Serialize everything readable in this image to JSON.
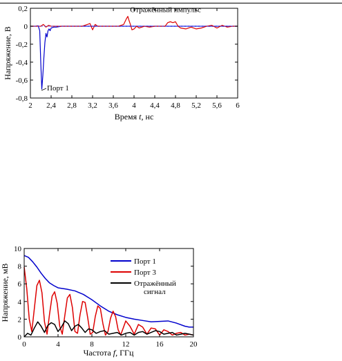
{
  "chart_data": [
    {
      "type": "line",
      "xlabel_parts": [
        "Время ",
        "t",
        ", нс"
      ],
      "ylabel": "Напряжение, В",
      "xlim": [
        2,
        6
      ],
      "ylim": [
        -0.8,
        0.2
      ],
      "xticks": [
        2,
        2.4,
        2.8,
        3.2,
        3.6,
        4,
        4.4,
        4.8,
        5.2,
        5.6,
        6
      ],
      "xtick_labels": [
        "2",
        "2,4",
        "2,8",
        "3,2",
        "3,6",
        "4",
        "4,4",
        "4,8",
        "5,2",
        "5,6",
        "6"
      ],
      "yticks": [
        0.2,
        0,
        -0.2,
        -0.4,
        -0.6,
        -0.8
      ],
      "ytick_labels": [
        "0,2",
        "0",
        "-0,2",
        "-0,4",
        "-0,6",
        "-0,8"
      ],
      "grid": false,
      "annotations": [
        {
          "text": "Отражённый импульс",
          "x": 3.95,
          "y": 0.08
        },
        {
          "text": "Порт 1",
          "x": 2.2,
          "y": -0.7
        }
      ],
      "series": [
        {
          "color": "#0000cc",
          "x": [
            2.0,
            2.1,
            2.15,
            2.18,
            2.2,
            2.22,
            2.24,
            2.26,
            2.28,
            2.3,
            2.32,
            2.34,
            2.36,
            2.38,
            2.4,
            2.45,
            2.5,
            2.6,
            3.0,
            3.5,
            4.0,
            4.5,
            5.0,
            5.5,
            6.0
          ],
          "y": [
            0.0,
            0.0,
            0.005,
            -0.05,
            -0.4,
            -0.7,
            -0.55,
            -0.35,
            -0.18,
            -0.08,
            -0.12,
            -0.05,
            -0.03,
            -0.05,
            -0.02,
            -0.01,
            -0.01,
            0.0,
            0.0,
            0.0,
            0.0,
            0.0,
            0.0,
            0.0,
            0.0
          ]
        },
        {
          "color": "#dd0000",
          "x": [
            2.0,
            2.1,
            2.2,
            2.25,
            2.3,
            2.35,
            2.4,
            2.5,
            2.8,
            3.0,
            3.1,
            3.15,
            3.2,
            3.25,
            3.3,
            3.4,
            3.5,
            3.6,
            3.7,
            3.8,
            3.85,
            3.88,
            3.9,
            3.93,
            3.96,
            4.0,
            4.05,
            4.1,
            4.2,
            4.3,
            4.4,
            4.5,
            4.6,
            4.65,
            4.7,
            4.75,
            4.8,
            4.85,
            4.9,
            5.0,
            5.1,
            5.2,
            5.3,
            5.4,
            5.5,
            5.6,
            5.7,
            5.8,
            5.9,
            6.0
          ],
          "y": [
            0.0,
            0.0,
            0.0,
            0.02,
            -0.01,
            0.01,
            0.0,
            0.0,
            0.0,
            0.0,
            0.02,
            0.03,
            -0.04,
            0.02,
            0.0,
            0.0,
            0.0,
            0.0,
            0.0,
            0.02,
            0.08,
            0.11,
            0.07,
            0.02,
            -0.04,
            -0.03,
            0.0,
            -0.02,
            0.0,
            -0.01,
            0.0,
            0.0,
            0.0,
            0.04,
            0.05,
            0.04,
            0.05,
            0.0,
            -0.02,
            -0.03,
            -0.01,
            -0.03,
            -0.02,
            0.0,
            0.01,
            -0.02,
            0.01,
            -0.01,
            0.0,
            0.0
          ]
        }
      ]
    },
    {
      "type": "line",
      "xlabel_parts": [
        "Частота ",
        "f",
        ", ГГц"
      ],
      "ylabel": "Напряжение, мВ",
      "xlim": [
        0,
        20
      ],
      "ylim": [
        0,
        10
      ],
      "xticks": [
        0,
        4,
        8,
        12,
        16,
        20
      ],
      "xtick_labels": [
        "0",
        "4",
        "8",
        "12",
        "16",
        "20"
      ],
      "yticks": [
        0,
        2,
        4,
        6,
        8,
        10
      ],
      "ytick_labels": [
        "0",
        "2",
        "4",
        "6",
        "8",
        "10"
      ],
      "grid": false,
      "legend_placement": "top-right",
      "legend_label_lines": [
        [
          "Порт 1"
        ],
        [
          "Порт 3"
        ],
        [
          "Отражённый",
          "сигнал"
        ]
      ],
      "series": [
        {
          "name": "Порт 1",
          "color": "#0000cc",
          "x": [
            0,
            0.5,
            1,
            1.5,
            2,
            2.5,
            3,
            3.5,
            4,
            5,
            6,
            7,
            8,
            9,
            10,
            11,
            12,
            13,
            14,
            15,
            16,
            17,
            18,
            19,
            19.5,
            20
          ],
          "y": [
            9.2,
            9.0,
            8.5,
            7.9,
            7.2,
            6.6,
            6.1,
            5.8,
            5.55,
            5.4,
            5.2,
            4.8,
            4.2,
            3.5,
            2.9,
            2.5,
            2.2,
            2.0,
            1.85,
            1.7,
            1.75,
            1.8,
            1.55,
            1.2,
            1.1,
            1.1
          ]
        },
        {
          "name": "Порт 3",
          "color": "#dd0000",
          "x": [
            0,
            0.3,
            0.6,
            0.9,
            1.2,
            1.5,
            1.8,
            2.1,
            2.4,
            2.7,
            3.0,
            3.3,
            3.6,
            3.9,
            4.2,
            4.5,
            4.8,
            5.1,
            5.4,
            5.7,
            6.0,
            6.3,
            6.6,
            6.9,
            7.2,
            7.5,
            7.8,
            8.1,
            8.4,
            8.7,
            9.0,
            9.3,
            9.6,
            9.9,
            10.2,
            10.5,
            10.8,
            11.1,
            11.4,
            11.7,
            12.0,
            12.5,
            13.0,
            13.5,
            14.0,
            14.5,
            15.0,
            15.5,
            16.0,
            16.5,
            17.0,
            17.5,
            18.0,
            18.5,
            19.0,
            19.5,
            20.0
          ],
          "y": [
            7.9,
            5.5,
            2.0,
            0.6,
            3.2,
            5.8,
            6.4,
            5.0,
            1.7,
            0.3,
            2.6,
            4.6,
            5.1,
            3.8,
            1.2,
            0.3,
            2.4,
            4.4,
            4.8,
            3.3,
            0.6,
            0.4,
            2.5,
            4.0,
            3.9,
            2.2,
            0.3,
            0.5,
            2.3,
            3.5,
            3.2,
            1.5,
            0.2,
            0.6,
            2.1,
            2.9,
            2.3,
            0.8,
            0.2,
            1.0,
            1.8,
            1.2,
            0.3,
            1.4,
            1.1,
            0.3,
            1.0,
            0.9,
            0.2,
            0.8,
            0.6,
            0.2,
            0.4,
            0.5,
            0.2,
            0.3,
            0.2
          ]
        },
        {
          "name": "Отражённый сигнал",
          "color": "#000000",
          "x": [
            0,
            0.4,
            0.8,
            1.2,
            1.6,
            2.0,
            2.4,
            2.8,
            3.2,
            3.6,
            4.0,
            4.4,
            4.8,
            5.2,
            5.6,
            6.0,
            6.4,
            6.8,
            7.2,
            7.6,
            8.0,
            8.5,
            9.0,
            9.5,
            10.0,
            10.5,
            11.0,
            11.5,
            12.0,
            12.5,
            13.0,
            13.5,
            14.0,
            14.5,
            15.0,
            15.5,
            16.0,
            16.5,
            17.0,
            17.5,
            18.0,
            18.5,
            19.0,
            19.5,
            20.0
          ],
          "y": [
            0.0,
            0.4,
            0.2,
            1.0,
            1.7,
            1.2,
            0.5,
            1.3,
            1.6,
            1.4,
            0.6,
            1.1,
            1.8,
            1.5,
            0.7,
            1.2,
            1.4,
            1.0,
            0.5,
            0.9,
            0.8,
            0.4,
            0.6,
            0.7,
            0.3,
            0.4,
            0.5,
            0.2,
            0.4,
            0.5,
            0.2,
            0.5,
            0.6,
            0.3,
            0.5,
            0.7,
            0.6,
            0.3,
            0.4,
            0.5,
            0.2,
            0.3,
            0.4,
            0.3,
            0.2
          ]
        }
      ]
    }
  ]
}
